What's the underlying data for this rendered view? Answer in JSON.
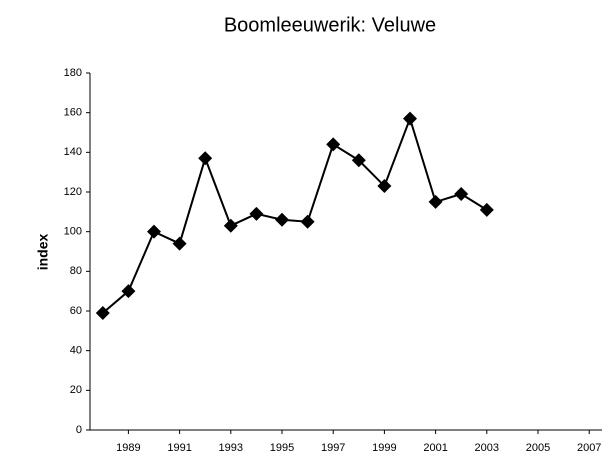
{
  "chart_data": {
    "type": "line",
    "title": "Boomleeuwerik: Veluwe",
    "y_label": "index",
    "x": [
      1988,
      1989,
      1990,
      1991,
      1992,
      1993,
      1994,
      1995,
      1996,
      1997,
      1998,
      1999,
      2000,
      2001,
      2002,
      2003
    ],
    "series": [
      {
        "name": "Veluwe",
        "color": "#000000",
        "values": [
          59,
          70,
          100,
          94,
          137,
          103,
          109,
          106,
          105,
          144,
          136,
          123,
          157,
          115,
          119,
          111
        ]
      }
    ],
    "xlim": [
      1987.5,
      2007.5
    ],
    "xticks": [
      1989,
      1991,
      1993,
      1995,
      1997,
      1999,
      2001,
      2003,
      2005,
      2007
    ],
    "ylim": [
      0,
      180
    ],
    "yticks": [
      0,
      20,
      40,
      60,
      80,
      100,
      120,
      140,
      160,
      180
    ],
    "grid": false
  }
}
